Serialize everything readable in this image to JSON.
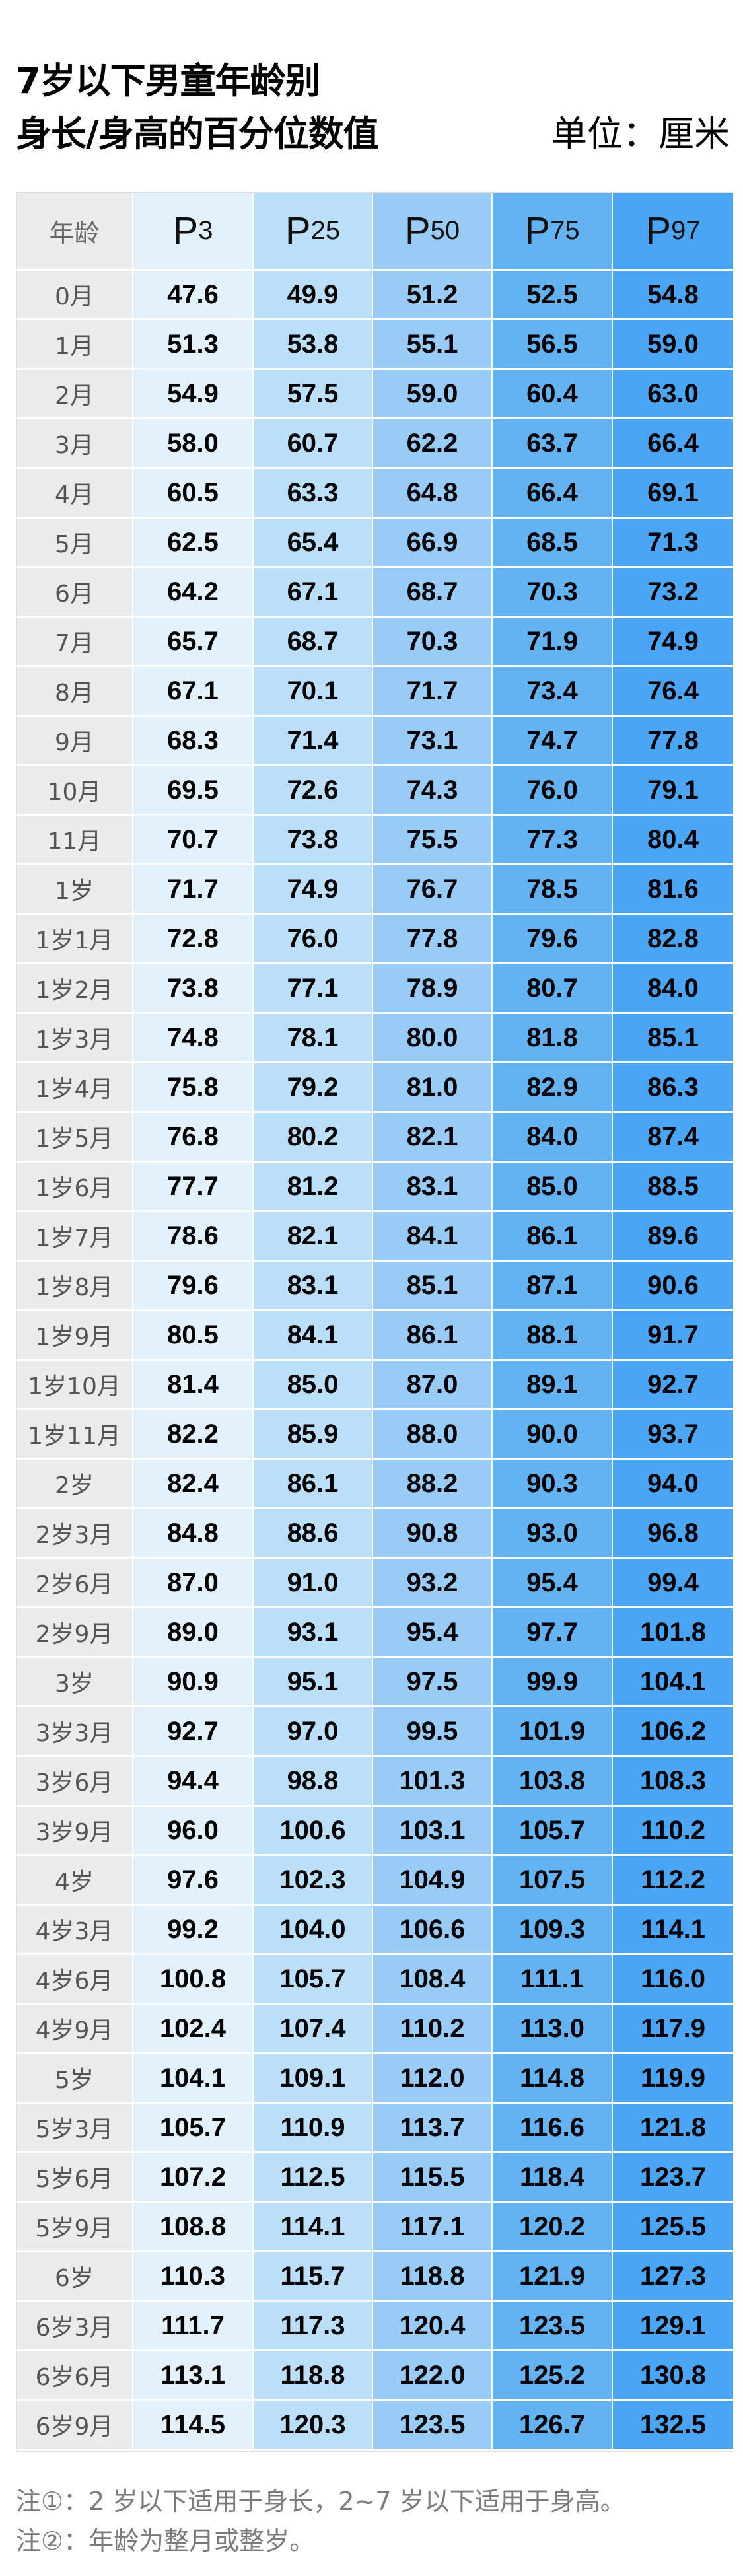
{
  "header": {
    "title_line1": "7岁以下男童年龄别",
    "title_line2": "身长/身高的百分位数值",
    "unit": "单位：厘米"
  },
  "table": {
    "age_header": "年龄",
    "percentile_headers": [
      {
        "letter": "P",
        "sub": "3"
      },
      {
        "letter": "P",
        "sub": "25"
      },
      {
        "letter": "P",
        "sub": "50"
      },
      {
        "letter": "P",
        "sub": "75"
      },
      {
        "letter": "P",
        "sub": "97"
      }
    ],
    "column_colors": [
      "#ebebeb",
      "#e3f1fc",
      "#bcdff9",
      "#98cbf6",
      "#63b3f2",
      "#4aa6f4"
    ],
    "rows": [
      {
        "age": "0月",
        "values": [
          "47.6",
          "49.9",
          "51.2",
          "52.5",
          "54.8"
        ]
      },
      {
        "age": "1月",
        "values": [
          "51.3",
          "53.8",
          "55.1",
          "56.5",
          "59.0"
        ]
      },
      {
        "age": "2月",
        "values": [
          "54.9",
          "57.5",
          "59.0",
          "60.4",
          "63.0"
        ]
      },
      {
        "age": "3月",
        "values": [
          "58.0",
          "60.7",
          "62.2",
          "63.7",
          "66.4"
        ]
      },
      {
        "age": "4月",
        "values": [
          "60.5",
          "63.3",
          "64.8",
          "66.4",
          "69.1"
        ]
      },
      {
        "age": "5月",
        "values": [
          "62.5",
          "65.4",
          "66.9",
          "68.5",
          "71.3"
        ]
      },
      {
        "age": "6月",
        "values": [
          "64.2",
          "67.1",
          "68.7",
          "70.3",
          "73.2"
        ]
      },
      {
        "age": "7月",
        "values": [
          "65.7",
          "68.7",
          "70.3",
          "71.9",
          "74.9"
        ]
      },
      {
        "age": "8月",
        "values": [
          "67.1",
          "70.1",
          "71.7",
          "73.4",
          "76.4"
        ]
      },
      {
        "age": "9月",
        "values": [
          "68.3",
          "71.4",
          "73.1",
          "74.7",
          "77.8"
        ]
      },
      {
        "age": "10月",
        "values": [
          "69.5",
          "72.6",
          "74.3",
          "76.0",
          "79.1"
        ]
      },
      {
        "age": "11月",
        "values": [
          "70.7",
          "73.8",
          "75.5",
          "77.3",
          "80.4"
        ]
      },
      {
        "age": "1岁",
        "values": [
          "71.7",
          "74.9",
          "76.7",
          "78.5",
          "81.6"
        ]
      },
      {
        "age": "1岁1月",
        "values": [
          "72.8",
          "76.0",
          "77.8",
          "79.6",
          "82.8"
        ]
      },
      {
        "age": "1岁2月",
        "values": [
          "73.8",
          "77.1",
          "78.9",
          "80.7",
          "84.0"
        ]
      },
      {
        "age": "1岁3月",
        "values": [
          "74.8",
          "78.1",
          "80.0",
          "81.8",
          "85.1"
        ]
      },
      {
        "age": "1岁4月",
        "values": [
          "75.8",
          "79.2",
          "81.0",
          "82.9",
          "86.3"
        ]
      },
      {
        "age": "1岁5月",
        "values": [
          "76.8",
          "80.2",
          "82.1",
          "84.0",
          "87.4"
        ]
      },
      {
        "age": "1岁6月",
        "values": [
          "77.7",
          "81.2",
          "83.1",
          "85.0",
          "88.5"
        ]
      },
      {
        "age": "1岁7月",
        "values": [
          "78.6",
          "82.1",
          "84.1",
          "86.1",
          "89.6"
        ]
      },
      {
        "age": "1岁8月",
        "values": [
          "79.6",
          "83.1",
          "85.1",
          "87.1",
          "90.6"
        ]
      },
      {
        "age": "1岁9月",
        "values": [
          "80.5",
          "84.1",
          "86.1",
          "88.1",
          "91.7"
        ]
      },
      {
        "age": "1岁10月",
        "values": [
          "81.4",
          "85.0",
          "87.0",
          "89.1",
          "92.7"
        ]
      },
      {
        "age": "1岁11月",
        "values": [
          "82.2",
          "85.9",
          "88.0",
          "90.0",
          "93.7"
        ]
      },
      {
        "age": "2岁",
        "values": [
          "82.4",
          "86.1",
          "88.2",
          "90.3",
          "94.0"
        ]
      },
      {
        "age": "2岁3月",
        "values": [
          "84.8",
          "88.6",
          "90.8",
          "93.0",
          "96.8"
        ]
      },
      {
        "age": "2岁6月",
        "values": [
          "87.0",
          "91.0",
          "93.2",
          "95.4",
          "99.4"
        ]
      },
      {
        "age": "2岁9月",
        "values": [
          "89.0",
          "93.1",
          "95.4",
          "97.7",
          "101.8"
        ]
      },
      {
        "age": "3岁",
        "values": [
          "90.9",
          "95.1",
          "97.5",
          "99.9",
          "104.1"
        ]
      },
      {
        "age": "3岁3月",
        "values": [
          "92.7",
          "97.0",
          "99.5",
          "101.9",
          "106.2"
        ]
      },
      {
        "age": "3岁6月",
        "values": [
          "94.4",
          "98.8",
          "101.3",
          "103.8",
          "108.3"
        ]
      },
      {
        "age": "3岁9月",
        "values": [
          "96.0",
          "100.6",
          "103.1",
          "105.7",
          "110.2"
        ]
      },
      {
        "age": "4岁",
        "values": [
          "97.6",
          "102.3",
          "104.9",
          "107.5",
          "112.2"
        ]
      },
      {
        "age": "4岁3月",
        "values": [
          "99.2",
          "104.0",
          "106.6",
          "109.3",
          "114.1"
        ]
      },
      {
        "age": "4岁6月",
        "values": [
          "100.8",
          "105.7",
          "108.4",
          "111.1",
          "116.0"
        ]
      },
      {
        "age": "4岁9月",
        "values": [
          "102.4",
          "107.4",
          "110.2",
          "113.0",
          "117.9"
        ]
      },
      {
        "age": "5岁",
        "values": [
          "104.1",
          "109.1",
          "112.0",
          "114.8",
          "119.9"
        ]
      },
      {
        "age": "5岁3月",
        "values": [
          "105.7",
          "110.9",
          "113.7",
          "116.6",
          "121.8"
        ]
      },
      {
        "age": "5岁6月",
        "values": [
          "107.2",
          "112.5",
          "115.5",
          "118.4",
          "123.7"
        ]
      },
      {
        "age": "5岁9月",
        "values": [
          "108.8",
          "114.1",
          "117.1",
          "120.2",
          "125.5"
        ]
      },
      {
        "age": "6岁",
        "values": [
          "110.3",
          "115.7",
          "118.8",
          "121.9",
          "127.3"
        ]
      },
      {
        "age": "6岁3月",
        "values": [
          "111.7",
          "117.3",
          "120.4",
          "123.5",
          "129.1"
        ]
      },
      {
        "age": "6岁6月",
        "values": [
          "113.1",
          "118.8",
          "122.0",
          "125.2",
          "130.8"
        ]
      },
      {
        "age": "6岁9月",
        "values": [
          "114.5",
          "120.3",
          "123.5",
          "126.7",
          "132.5"
        ]
      }
    ]
  },
  "notes": [
    "注①：2 岁以下适用于身长，2~7 岁以下适用于身高。",
    "注②：年龄为整月或整岁。"
  ]
}
